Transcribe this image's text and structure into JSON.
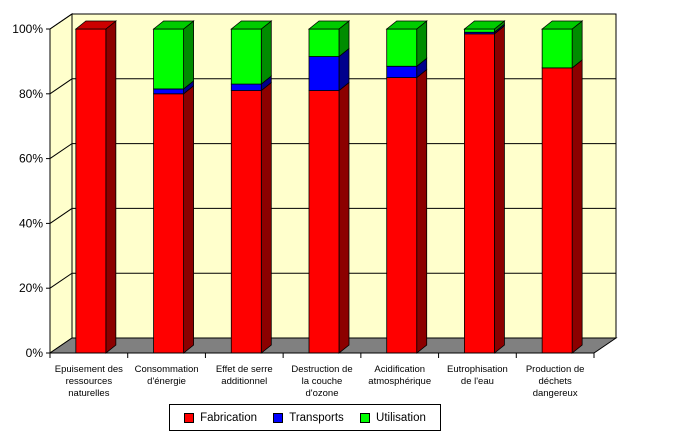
{
  "chart_data": {
    "type": "bar",
    "stacked": true,
    "percent": true,
    "three_d": true,
    "categories": [
      "Epuisement des ressources naturelles",
      "Consommation d'énergie",
      "Effet de serre additionnel",
      "Destruction de la couche d'ozone",
      "Acidification atmosphérique",
      "Eutrophisation de l'eau",
      "Production de déchets dangereux"
    ],
    "category_lines": [
      [
        "Epuisement des",
        "ressources",
        "naturelles"
      ],
      [
        "Consommation",
        "d'énergie"
      ],
      [
        "Effet de serre",
        "additionnel"
      ],
      [
        "Destruction de",
        "la couche",
        "d'ozone"
      ],
      [
        "Acidification",
        "atmosphérique"
      ],
      [
        "Eutrophisation",
        "de l'eau"
      ],
      [
        "Production de",
        "déchets",
        "dangereux"
      ]
    ],
    "series": [
      {
        "name": "Fabrication",
        "color": "#ff0000",
        "values": [
          100,
          80,
          81,
          81,
          85,
          98.5,
          88
        ]
      },
      {
        "name": "Transports",
        "color": "#0000ff",
        "values": [
          0,
          1.5,
          2,
          10.5,
          3.5,
          0.5,
          0
        ]
      },
      {
        "name": "Utilisation",
        "color": "#00ff00",
        "values": [
          0,
          18.5,
          17,
          8.5,
          11.5,
          1,
          12
        ]
      }
    ],
    "yticks": [
      "0%",
      "20%",
      "40%",
      "60%",
      "80%",
      "100%"
    ],
    "ylim": [
      0,
      100
    ],
    "grid": true,
    "legend_position": "bottom",
    "title": "",
    "xlabel": "",
    "ylabel": "",
    "colors": {
      "wall": "#ffffcc",
      "floor": "#808080",
      "grid": "#000000"
    }
  }
}
